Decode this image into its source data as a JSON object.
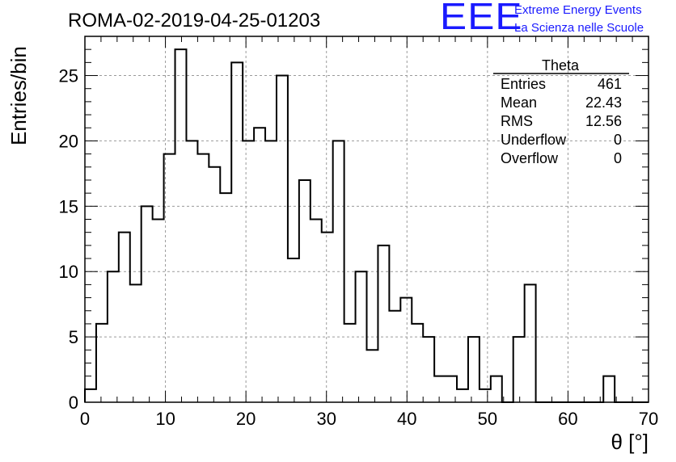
{
  "logo": {
    "mark": "EEE",
    "line1": "Extreme Energy Events",
    "line2": "La Scienza nelle Scuole",
    "color": "#1a1aff"
  },
  "chart_data": {
    "type": "histogram",
    "title": "ROMA-02-2019-04-25-01203",
    "xlabel": "θ [°]",
    "ylabel": "Entries/bin",
    "xlim": [
      0,
      70
    ],
    "ylim": [
      0,
      28
    ],
    "grid": true,
    "bin_width": 1.4,
    "bin_edges_start": 0,
    "x_ticks": [
      0,
      10,
      20,
      30,
      40,
      50,
      60,
      70
    ],
    "y_ticks": [
      0,
      5,
      10,
      15,
      20,
      25
    ],
    "values": [
      1,
      6,
      10,
      13,
      9,
      15,
      14,
      19,
      27,
      20,
      19,
      18,
      16,
      26,
      20,
      21,
      20,
      25,
      11,
      17,
      14,
      13,
      20,
      6,
      10,
      4,
      12,
      7,
      8,
      6,
      5,
      2,
      2,
      1,
      5,
      1,
      2,
      0,
      5,
      9,
      0,
      0,
      0,
      0,
      0,
      0,
      2,
      0,
      0,
      0
    ],
    "stats": {
      "name": "Theta",
      "rows": [
        {
          "label": "Entries",
          "value": "461"
        },
        {
          "label": "Mean",
          "value": "22.43"
        },
        {
          "label": "RMS",
          "value": "12.56"
        },
        {
          "label": "Underflow",
          "value": "0"
        },
        {
          "label": "Overflow",
          "value": "0"
        }
      ]
    }
  }
}
